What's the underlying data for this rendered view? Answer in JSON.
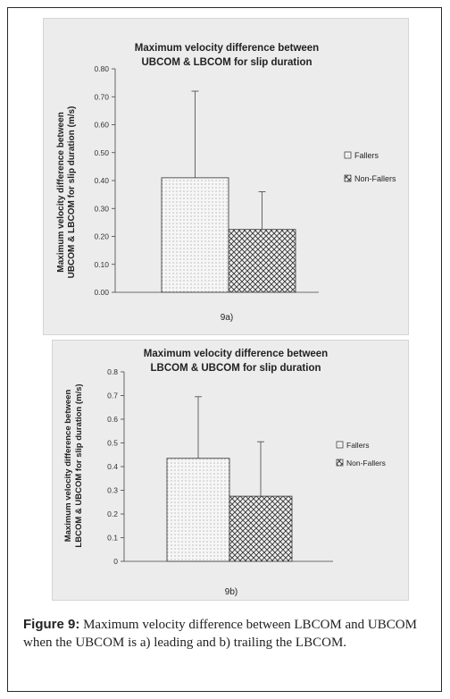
{
  "chart_data": [
    {
      "type": "bar",
      "title": [
        "Maximum velocity difference between",
        "UBCOM & LBCOM for slip duration"
      ],
      "ylabel": [
        "Maximum velocity difference between",
        "UBCOM & LBCOM for slip duration (m/s)"
      ],
      "xlabel": "",
      "ylim": [
        0,
        0.8
      ],
      "yticks": [
        "0.00",
        "0.10",
        "0.20",
        "0.30",
        "0.40",
        "0.50",
        "0.60",
        "0.70",
        "0.80"
      ],
      "legend_position": "right",
      "series": [
        {
          "name": "Fallers",
          "value": 0.41,
          "error": 0.31,
          "pattern": "dots"
        },
        {
          "name": "Non-Fallers",
          "value": 0.225,
          "error": 0.135,
          "pattern": "crosshatch"
        }
      ],
      "panel_label": "9a)"
    },
    {
      "type": "bar",
      "title": [
        "Maximum velocity difference between",
        "LBCOM & UBCOM for slip duration"
      ],
      "ylabel": [
        "Maximum velocity difference between",
        "LBCOM & UBCOM for slip duration (m/s)"
      ],
      "xlabel": "",
      "ylim": [
        0,
        0.8
      ],
      "yticks": [
        "0",
        "0.1",
        "0.2",
        "0.3",
        "0.4",
        "0.5",
        "0.6",
        "0.7",
        "0.8"
      ],
      "legend_position": "right",
      "series": [
        {
          "name": "Fallers",
          "value": 0.435,
          "error": 0.26,
          "pattern": "dots"
        },
        {
          "name": "Non-Fallers",
          "value": 0.275,
          "error": 0.23,
          "pattern": "crosshatch"
        }
      ],
      "panel_label": "9b)"
    }
  ],
  "caption": {
    "label": "Figure 9:",
    "text": " Maximum velocity difference between LBCOM and UBCOM when the UBCOM is a) leading and b) trailing the LBCOM."
  },
  "colors": {
    "panel_bg": "#ececec",
    "bar_fill": "#f6f6f6",
    "ink": "#2a2a2a"
  }
}
